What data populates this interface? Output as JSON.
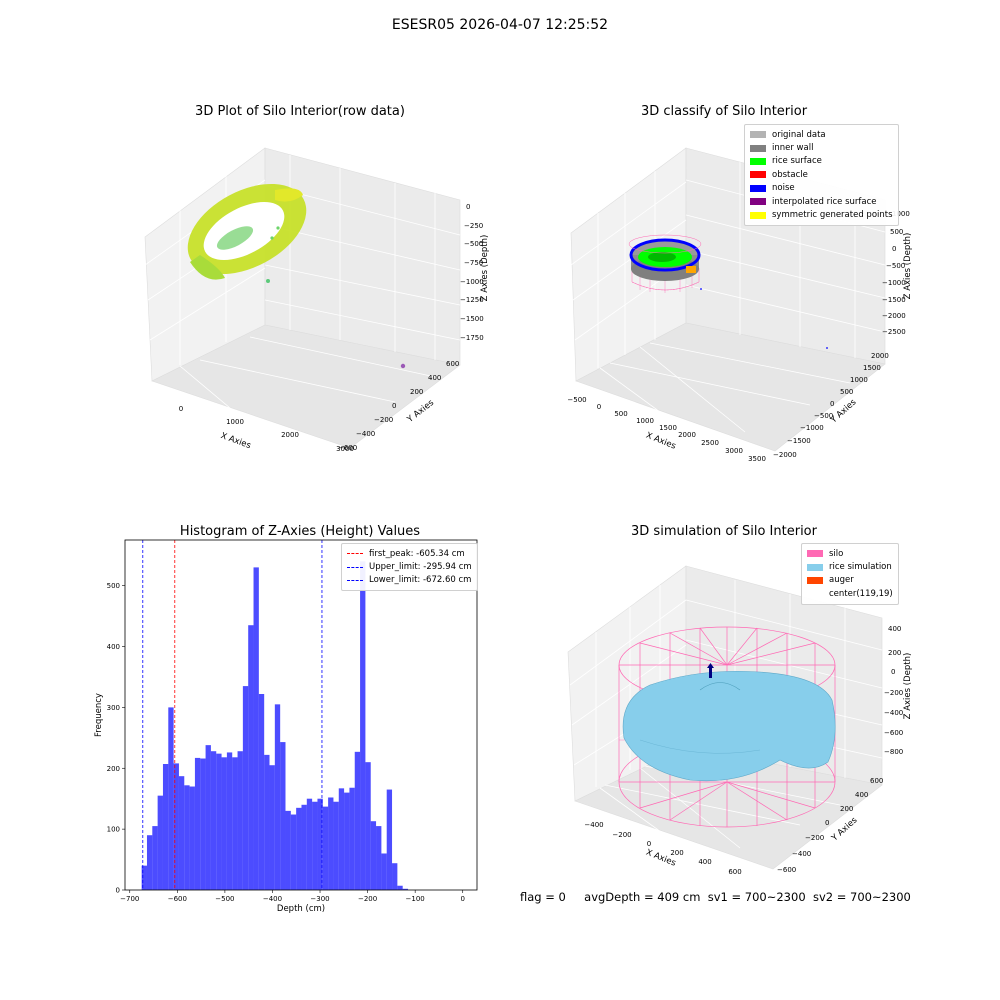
{
  "figure": {
    "title": "ESESR05 2026-04-07 12:25:52",
    "status": {
      "flag": "flag = 0",
      "avg_depth": "avgDepth = 409 cm",
      "sv1": "sv1 = 700~2300",
      "sv2": "sv2 = 700~2300"
    }
  },
  "chart_data": [
    {
      "type": "scatter",
      "title": "3D Plot of Silo Interior(row data)",
      "xlabel": "X Axies",
      "ylabel": "Y Axies",
      "zlabel": "Z Axies (Depth)",
      "x_ticks": [
        "0",
        "1000",
        "2000",
        "3000"
      ],
      "y_ticks": [
        "600",
        "400",
        "200",
        "0",
        "−200",
        "−400",
        "−600"
      ],
      "z_ticks": [
        "0",
        "−250",
        "−500",
        "−750",
        "−1000",
        "−1250",
        "−1500",
        "−1750"
      ],
      "colors": {
        "surface_low": "#c8e600",
        "surface_high": "#6dd46a",
        "outlier": "#9b59b6"
      }
    },
    {
      "type": "scatter",
      "title": "3D classify of Silo Interior",
      "xlabel": "X Axies",
      "ylabel": "Y Axies",
      "zlabel": "Z Axies (Depth)",
      "x_ticks": [
        "−500",
        "0",
        "500",
        "1000",
        "1500",
        "2000",
        "2500",
        "3000",
        "3500"
      ],
      "y_ticks": [
        "2000",
        "1500",
        "1000",
        "500",
        "0",
        "−500",
        "−1000",
        "−1500",
        "−2000"
      ],
      "z_ticks": [
        "1000",
        "500",
        "0",
        "−500",
        "−1000",
        "−1500",
        "−2000",
        "−2500"
      ],
      "legend": [
        {
          "label": "original data",
          "color": "#b3b3b3"
        },
        {
          "label": "inner wall",
          "color": "#808080"
        },
        {
          "label": "rice surface",
          "color": "#00ff00"
        },
        {
          "label": "obstacle",
          "color": "#ff0000"
        },
        {
          "label": "noise",
          "color": "#0000ff"
        },
        {
          "label": "interpolated rice surface",
          "color": "#800080"
        },
        {
          "label": "symmetric generated points",
          "color": "#ffff00"
        }
      ]
    },
    {
      "type": "bar",
      "title": "Histogram of Z-Axies (Height) Values",
      "xlabel": "Depth (cm)",
      "ylabel": "Frequency",
      "xlim": [
        -710,
        30
      ],
      "ylim": [
        0,
        575
      ],
      "x_ticks": [
        -700,
        -600,
        -500,
        -400,
        -300,
        -200,
        -100,
        0
      ],
      "y_ticks": [
        0,
        100,
        200,
        300,
        400,
        500
      ],
      "bin_start": -675,
      "bin_width": 11.2,
      "values": [
        40,
        90,
        105,
        155,
        207,
        300,
        208,
        187,
        172,
        170,
        217,
        216,
        238,
        228,
        224,
        218,
        226,
        218,
        228,
        335,
        435,
        530,
        322,
        222,
        205,
        305,
        243,
        130,
        124,
        135,
        140,
        150,
        145,
        150,
        137,
        152,
        145,
        167,
        160,
        168,
        227,
        540,
        210,
        113,
        105,
        60,
        165,
        44,
        7,
        2
      ],
      "bar_color": "#0000ff",
      "lines": [
        {
          "label": "first_peak: -605.34 cm",
          "x": -605.34,
          "color": "#ff0000"
        },
        {
          "label": "Upper_limit: -295.94 cm",
          "x": -295.94,
          "color": "#0000ff"
        },
        {
          "label": "Lower_limit: -672.60 cm",
          "x": -672.6,
          "color": "#0000ff"
        }
      ]
    },
    {
      "type": "area",
      "title": "3D simulation of Silo Interior",
      "xlabel": "X Axies",
      "ylabel": "Y Axies",
      "zlabel": "Z Axies (Depth)",
      "x_ticks": [
        "−400",
        "−200",
        "0",
        "200",
        "400",
        "600"
      ],
      "y_ticks": [
        "600",
        "400",
        "200",
        "0",
        "−200",
        "−400",
        "−600"
      ],
      "z_ticks": [
        "400",
        "200",
        "0",
        "−200",
        "−400",
        "−600",
        "−800"
      ],
      "legend": [
        {
          "label": "silo",
          "color": "#ff69b4"
        },
        {
          "label": "rice simulation",
          "color": "#87ceeb"
        },
        {
          "label": "auger",
          "color": "#ff4500"
        },
        {
          "label": "center(119,19)",
          "color": "transparent"
        }
      ]
    }
  ]
}
